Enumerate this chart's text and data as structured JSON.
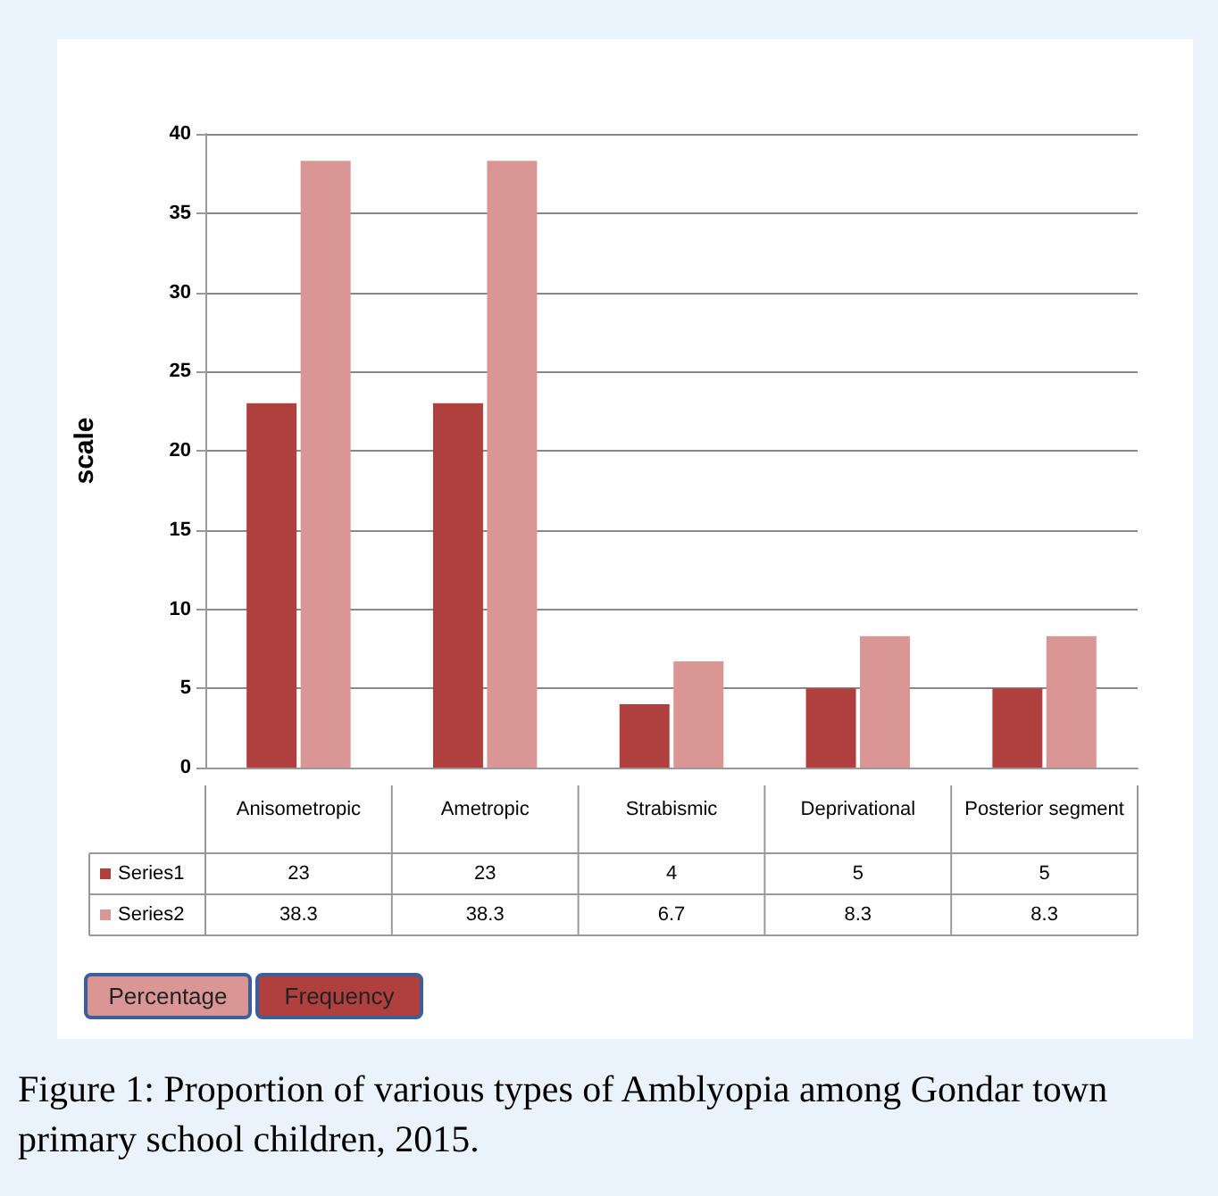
{
  "chart_data": {
    "type": "bar",
    "ylabel": "scale",
    "categories": [
      "Anisometropic",
      "Ametropic",
      "Strabismic",
      "Deprivational",
      "Posterior segment"
    ],
    "series": [
      {
        "name": "Series1",
        "color": "#b0403d",
        "values": [
          23,
          23,
          4,
          5,
          5
        ]
      },
      {
        "name": "Series2",
        "color": "#d99694",
        "values": [
          38.3,
          38.3,
          6.7,
          8.3,
          8.3
        ]
      }
    ],
    "ylim": [
      0,
      40
    ],
    "yticks": [
      0,
      5,
      10,
      15,
      20,
      25,
      30,
      35,
      40
    ],
    "grid": "y",
    "data_labels": true,
    "legend": "bottom left",
    "annotations": [
      "Percentage",
      "Frequency",
      "Figure 1: Proportion of various types of Amblyopia among Gondar town primary school children, 2015."
    ]
  }
}
